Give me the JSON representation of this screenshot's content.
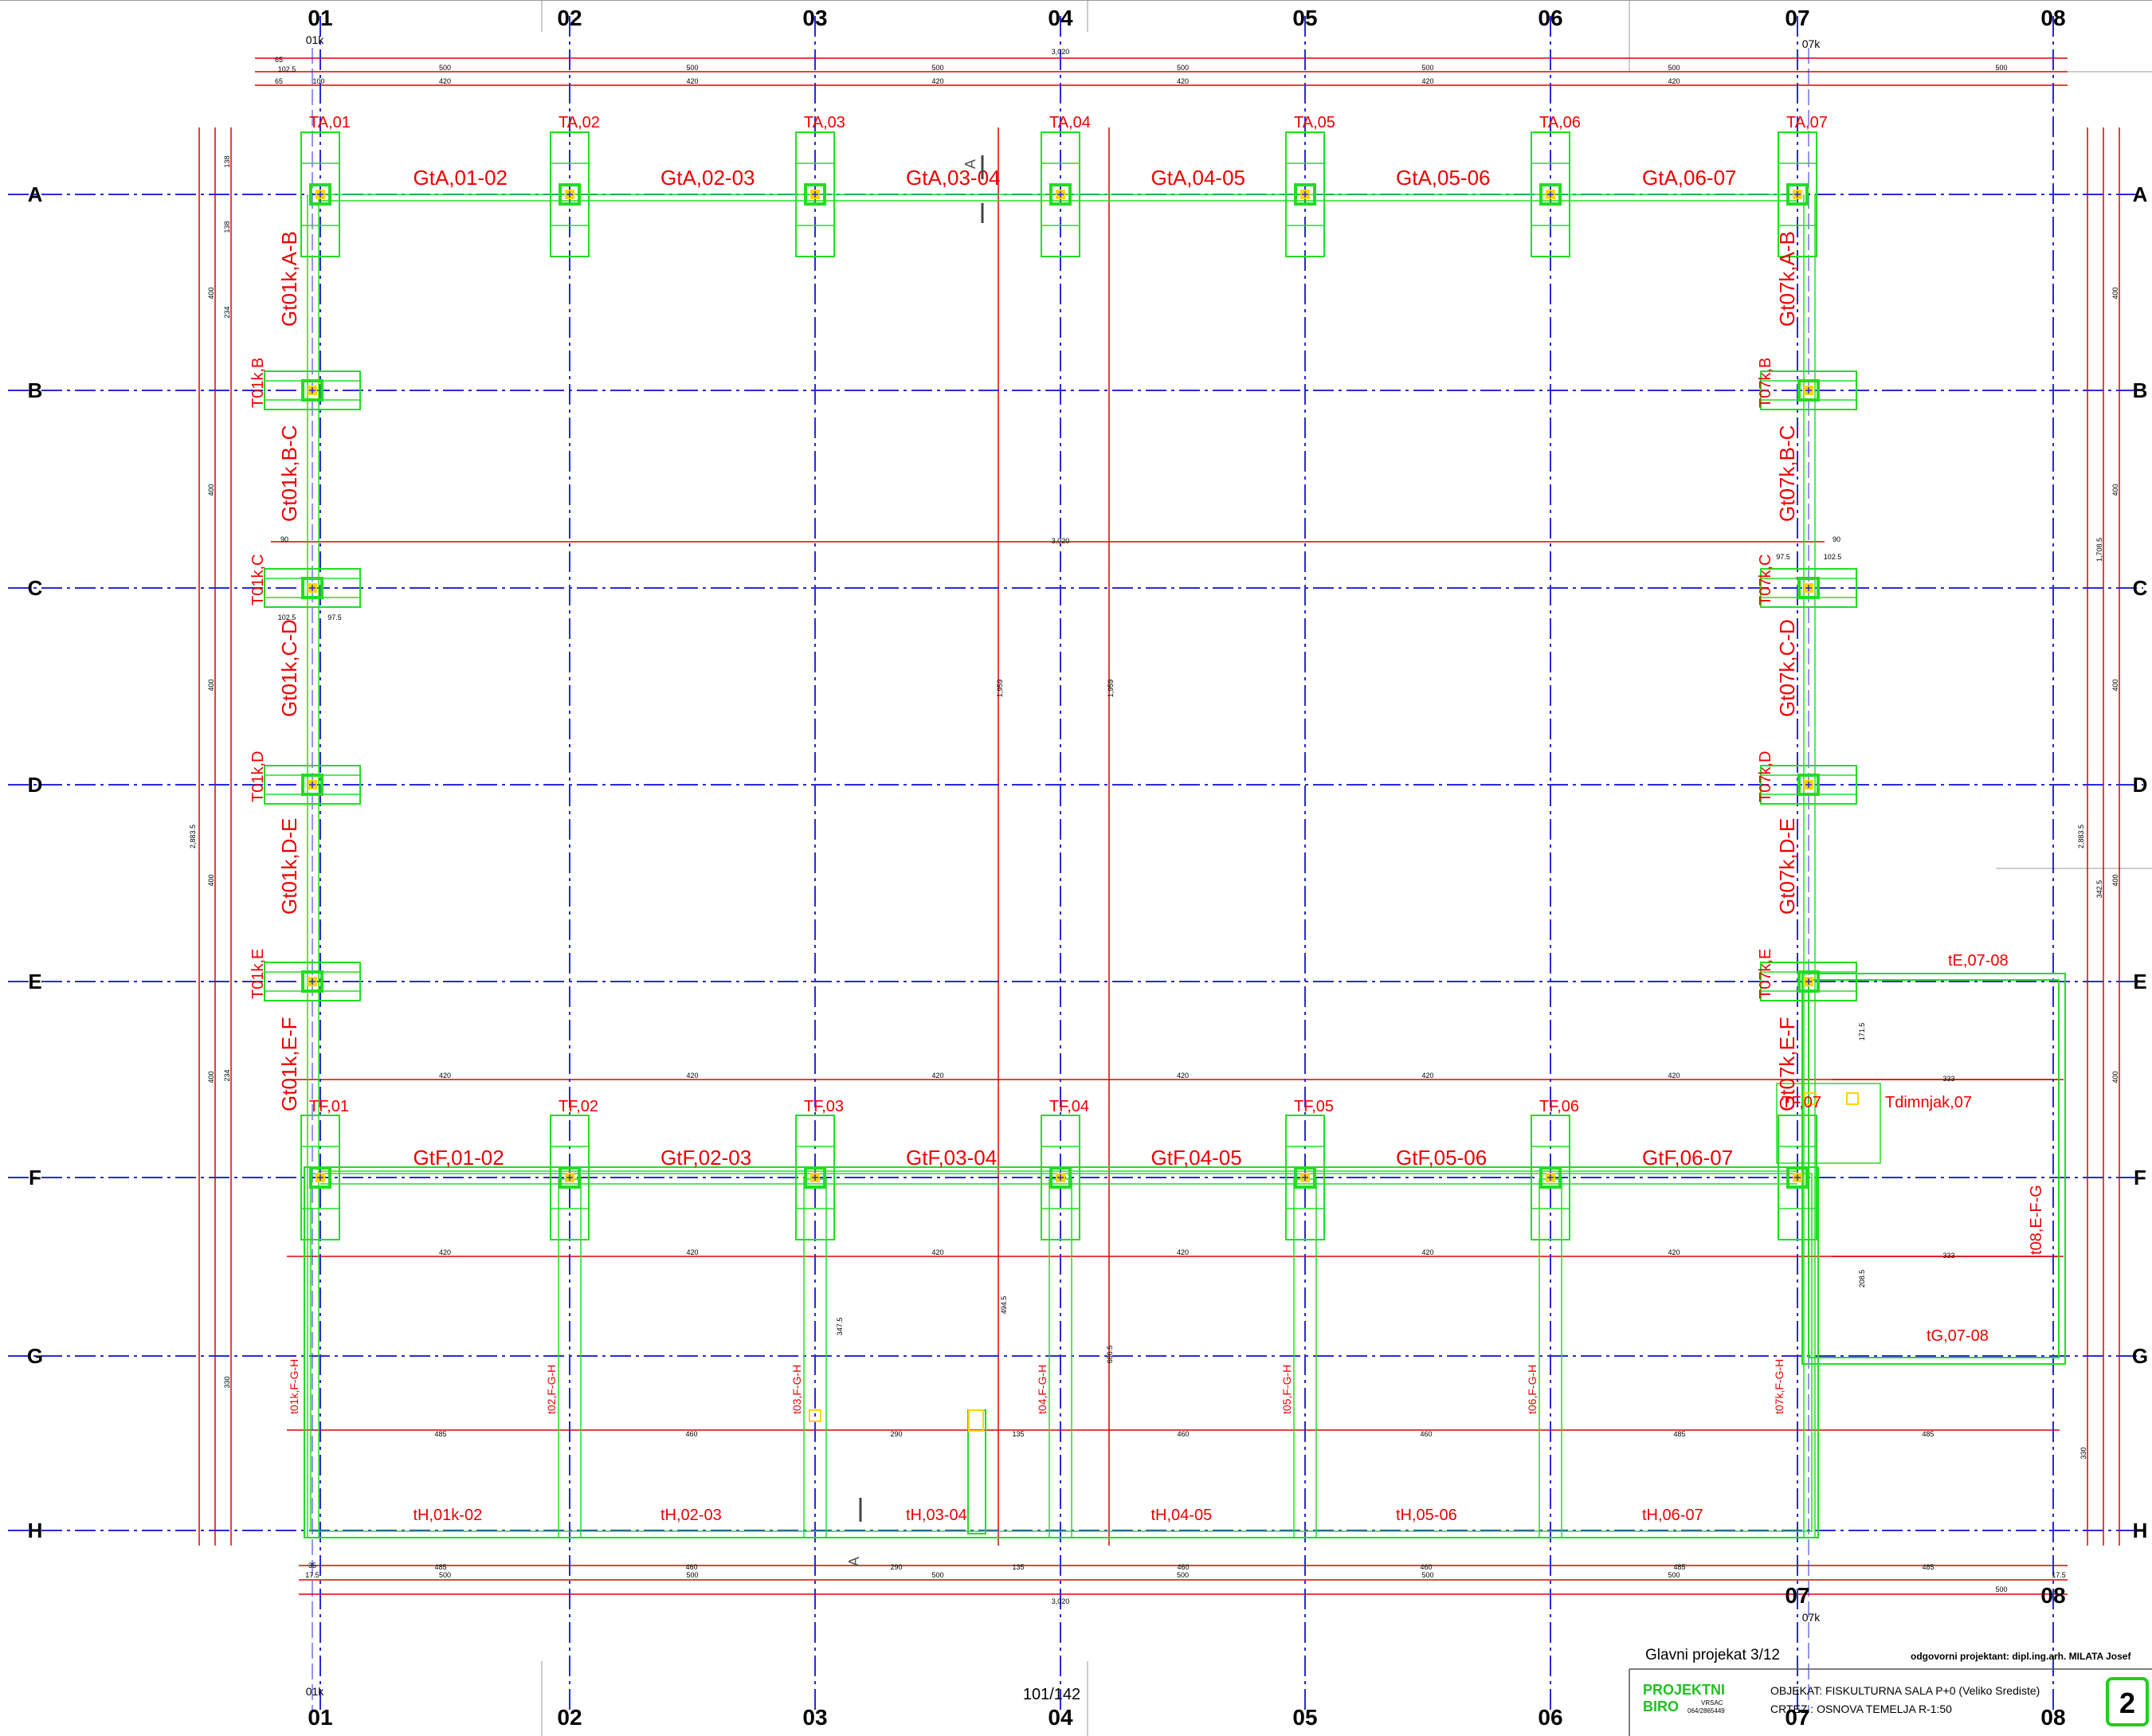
{
  "grid": {
    "columns": [
      "01",
      "02",
      "03",
      "04",
      "05",
      "06",
      "07",
      "08"
    ],
    "rows": [
      "A",
      "B",
      "C",
      "D",
      "E",
      "F",
      "G",
      "H"
    ],
    "col_01k_label": "01k",
    "col_07k_label": "07k"
  },
  "dimensions": {
    "overall_width": "3,020",
    "overall_height": "2,883.5",
    "bay": "500",
    "bay_inner": "420",
    "edge_top_left": "102.5",
    "edge_65": "65",
    "edge_100": "100",
    "side_400": "400",
    "side_234": "234",
    "side_330": "330",
    "side_138": "138",
    "c_row_90": "90",
    "c_row_975": "97.5",
    "c_row_1025": "102.5",
    "mid_1959": "1,959",
    "right_17085": "1,708.5",
    "right_3425": "342.5",
    "bottom_485": "485",
    "bottom_460": "460",
    "bottom_290": "290",
    "bottom_135": "135",
    "bottom_175": "17.5",
    "bottom_35": "35",
    "e_block_333": "333",
    "e_block_1715": "171.5",
    "e_block_2085": "208.5",
    "g_3475": "347.5",
    "g_4945": "494.5",
    "g_6865": "686.5"
  },
  "labels": {
    "ta": [
      "TA,01",
      "TA,02",
      "TA,03",
      "TA,04",
      "TA,05",
      "TA,06",
      "TA,07"
    ],
    "tf": [
      "TF,01",
      "TF,02",
      "TF,03",
      "TF,04",
      "TF,05",
      "TF,06"
    ],
    "gt_a": [
      "GtA,01-02",
      "GtA,02-03",
      "GtA,03-04",
      "GtA,04-05",
      "GtA,05-06",
      "GtA,06-07"
    ],
    "gt_f": [
      "GtF,01-02",
      "GtF,02-03",
      "GtF,03-04",
      "GtF,04-05",
      "GtF,05-06",
      "GtF,06-07"
    ],
    "gt_col01": [
      "Gt01k,A-B",
      "Gt01k,B-C",
      "Gt01k,C-D",
      "Gt01k,D-E",
      "Gt01k,E-F"
    ],
    "gt_col07": [
      "Gt07k,A-B",
      "Gt07k,B-C",
      "Gt07k,C-D",
      "Gt07k,D-E",
      "Gt07k,E-F"
    ],
    "t_col01": [
      "T01k,B",
      "T01k,C",
      "T01k,D",
      "T01k,E"
    ],
    "t_col07": [
      "T07k,B",
      "T07k,C",
      "T07k,D",
      "T07k,E"
    ],
    "th": [
      "tH,01k-02",
      "tH,02-03",
      "tH,03-04",
      "tH,04-05",
      "tH,05-06",
      "tH,06-07"
    ],
    "tgh": [
      "t01k,F-G-H",
      "t02,F-G-H",
      "t03,F-G-H",
      "t04,F-G-H",
      "t05,F-G-H",
      "t06,F-G-H",
      "t07k,F-G-H"
    ],
    "te_0708": "tE,07-08",
    "tg_0708": "tG,07-08",
    "t08_efg": "t08,E-F-G",
    "t_dimnjak": "Tdimnjak,07",
    "t_f07": "TF,07",
    "section_a": "A"
  },
  "title_block": {
    "project_line": "Glavni projekat 3/12",
    "responsible": "odgovorni projektant: dipl.ing.arh. MILATA Josef",
    "biro_line1": "PROJEKTNI",
    "biro_line2": "BIRO",
    "biro_city": "VRSAC",
    "biro_phone": "064/2865449",
    "objekat": "OBJEKAT: FISKULTURNA SALA P+0 (Veliko Srediste)",
    "crtez": "CRTEZ     : OSNOVA TEMELJA  R-1:50",
    "sheet_no": "2",
    "page_counter": "101/142"
  },
  "colors": {
    "grid_line": "#2a2ad8",
    "dim_line": "#e00000",
    "footing": "#22dd22",
    "column": "#ffd400",
    "text": "#000000"
  }
}
